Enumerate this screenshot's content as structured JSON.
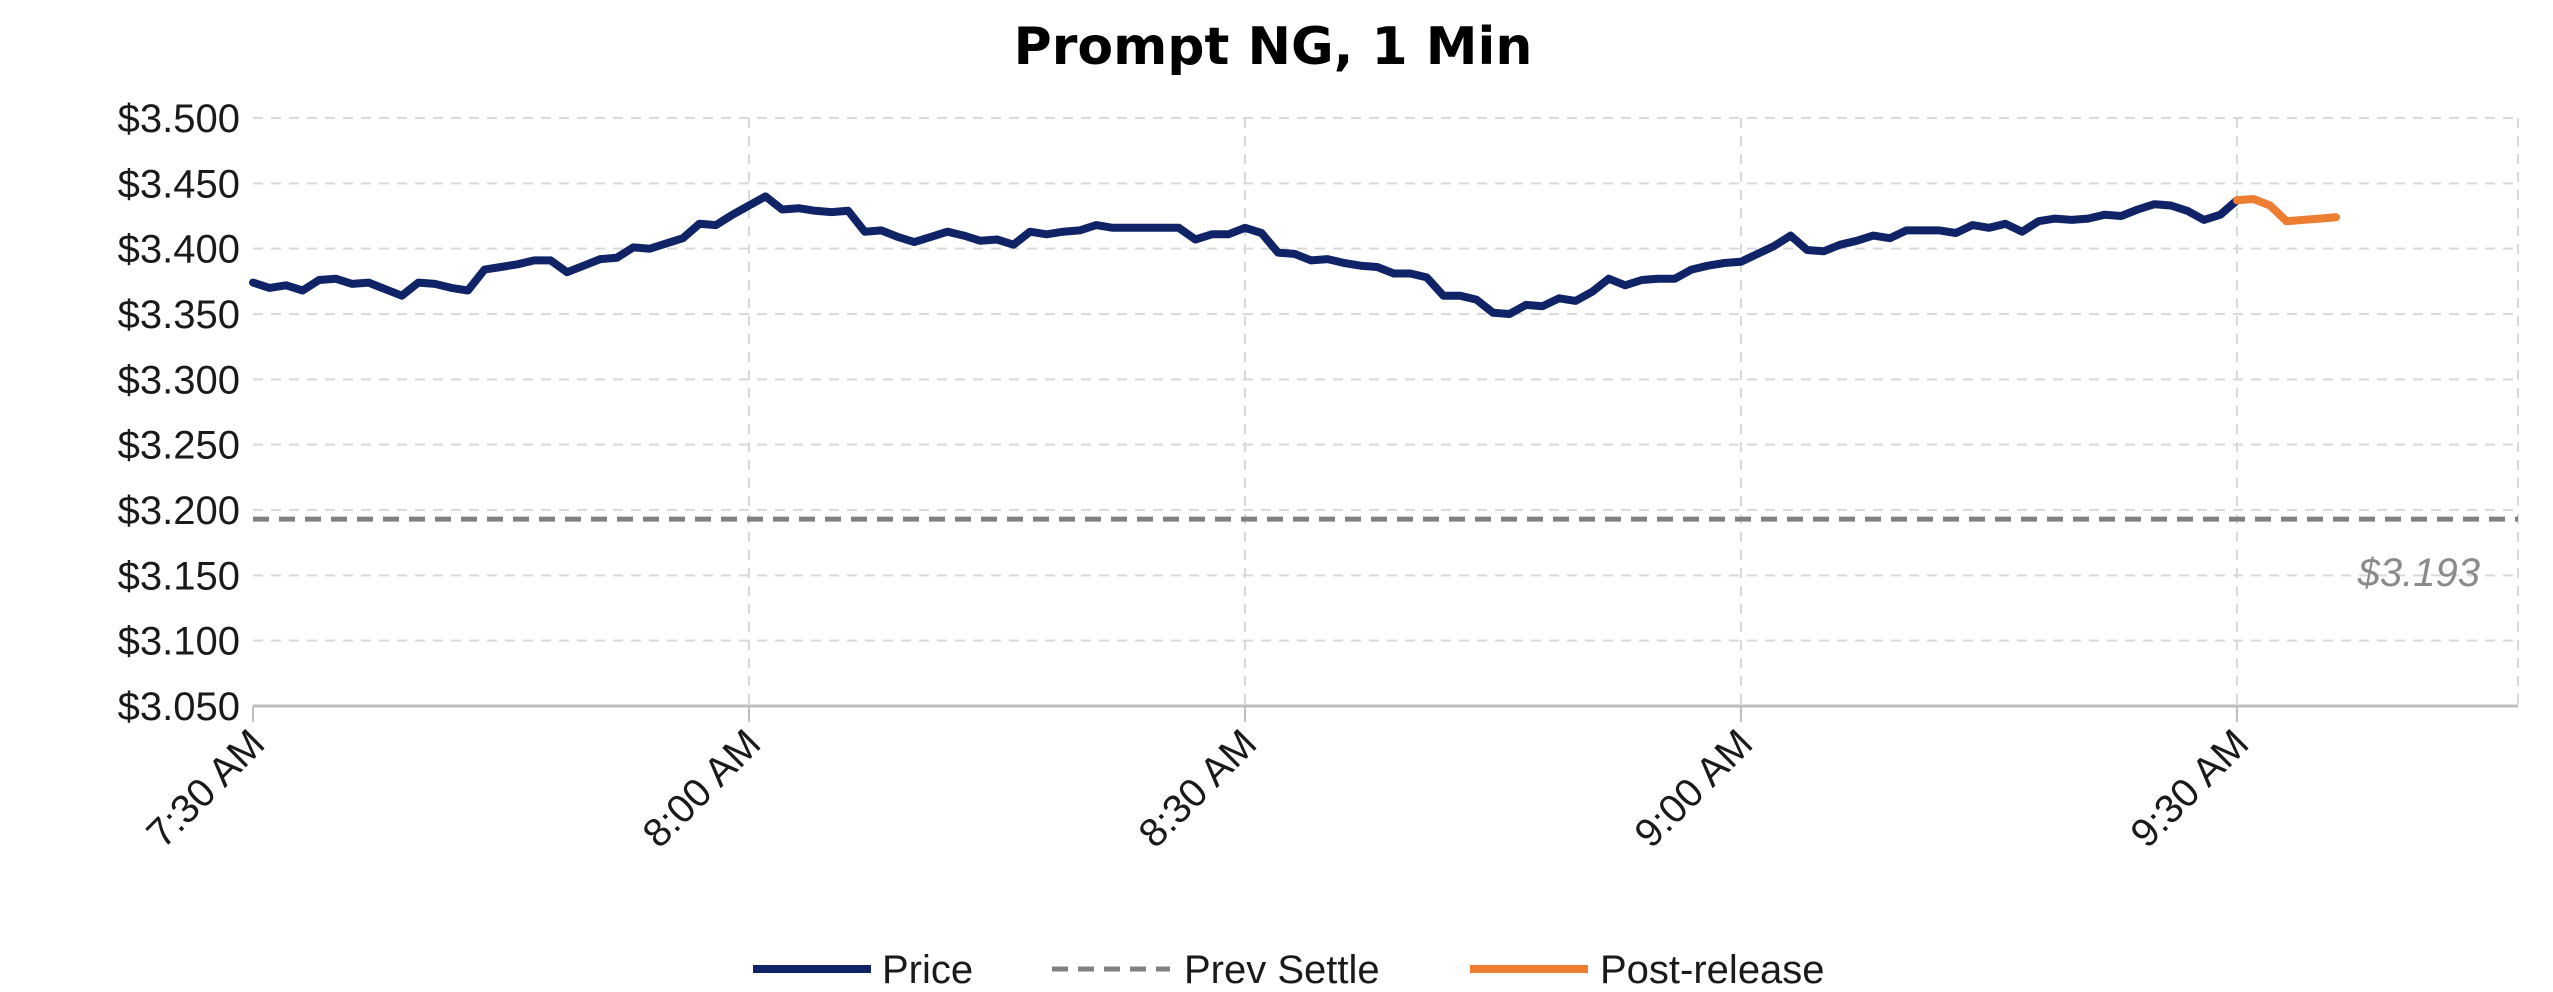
{
  "chart_data": {
    "type": "line",
    "title": "Prompt NG, 1 Min",
    "xlabel": "",
    "ylabel": "",
    "ylim": [
      3.05,
      3.5
    ],
    "yticks": [
      3.05,
      3.1,
      3.15,
      3.2,
      3.25,
      3.3,
      3.35,
      3.4,
      3.45,
      3.5
    ],
    "ytick_labels": [
      "$3.050",
      "$3.100",
      "$3.150",
      "$3.200",
      "$3.250",
      "$3.300",
      "$3.350",
      "$3.400",
      "$3.450",
      "$3.500"
    ],
    "x_unit": "minutes after 7:30 AM",
    "xlim": [
      0,
      137
    ],
    "xticks": [
      0,
      30,
      60,
      90,
      120
    ],
    "xtick_labels": [
      "7:30 AM",
      "8:00 AM",
      "8:30 AM",
      "9:00 AM",
      "9:30 AM"
    ],
    "grid": true,
    "legend_position": "bottom",
    "series": [
      {
        "name": "Price",
        "color": "#0f2366",
        "x": [
          0,
          1,
          2,
          3,
          4,
          5,
          6,
          7,
          8,
          9,
          10,
          11,
          12,
          13,
          14,
          15,
          16,
          17,
          18,
          19,
          20,
          21,
          22,
          23,
          24,
          25,
          26,
          27,
          28,
          29,
          30,
          31,
          32,
          33,
          34,
          35,
          36,
          37,
          38,
          39,
          40,
          41,
          42,
          43,
          44,
          45,
          46,
          47,
          48,
          49,
          50,
          51,
          52,
          53,
          54,
          55,
          56,
          57,
          58,
          59,
          60,
          61,
          62,
          63,
          64,
          65,
          66,
          67,
          68,
          69,
          70,
          71,
          72,
          73,
          74,
          75,
          76,
          77,
          78,
          79,
          80,
          81,
          82,
          83,
          84,
          85,
          86,
          87,
          88,
          89,
          90,
          91,
          92,
          93,
          94,
          95,
          96,
          97,
          98,
          99,
          100,
          101,
          102,
          103,
          104,
          105,
          106,
          107,
          108,
          109,
          110,
          111,
          112,
          113,
          114,
          115,
          116,
          117,
          118,
          119,
          120
        ],
        "values": [
          3.374,
          3.37,
          3.372,
          3.368,
          3.376,
          3.377,
          3.373,
          3.374,
          3.369,
          3.364,
          3.374,
          3.373,
          3.37,
          3.368,
          3.384,
          3.386,
          3.388,
          3.391,
          3.391,
          3.382,
          3.387,
          3.392,
          3.393,
          3.401,
          3.4,
          3.404,
          3.408,
          3.419,
          3.418,
          3.426,
          3.433,
          3.44,
          3.43,
          3.431,
          3.429,
          3.428,
          3.429,
          3.413,
          3.414,
          3.409,
          3.405,
          3.409,
          3.413,
          3.41,
          3.406,
          3.407,
          3.403,
          3.413,
          3.411,
          3.413,
          3.414,
          3.418,
          3.416,
          3.416,
          3.416,
          3.416,
          3.416,
          3.407,
          3.411,
          3.411,
          3.416,
          3.412,
          3.397,
          3.396,
          3.391,
          3.392,
          3.389,
          3.387,
          3.386,
          3.381,
          3.381,
          3.378,
          3.364,
          3.364,
          3.361,
          3.351,
          3.35,
          3.357,
          3.356,
          3.362,
          3.36,
          3.367,
          3.377,
          3.372,
          3.376,
          3.377,
          3.377,
          3.384,
          3.387,
          3.389,
          3.39,
          3.396,
          3.402,
          3.41,
          3.399,
          3.398,
          3.403,
          3.406,
          3.41,
          3.408,
          3.414,
          3.414,
          3.414,
          3.412,
          3.418,
          3.416,
          3.419,
          3.413,
          3.421,
          3.423,
          3.422,
          3.423,
          3.426,
          3.425,
          3.43,
          3.434,
          3.433,
          3.429,
          3.422,
          3.426,
          3.437
        ]
      },
      {
        "name": "Prev Settle",
        "color": "#808080",
        "dashed": true,
        "x": [
          0,
          137
        ],
        "values": [
          3.193,
          3.193
        ]
      },
      {
        "name": "Post-release",
        "color": "#ed7d31",
        "x": [
          120,
          121,
          122,
          123,
          124,
          125,
          126
        ],
        "values": [
          3.437,
          3.438,
          3.433,
          3.421,
          3.422,
          3.423,
          3.424
        ]
      }
    ],
    "annotations": [
      {
        "text": "$3.193"
      }
    ]
  }
}
